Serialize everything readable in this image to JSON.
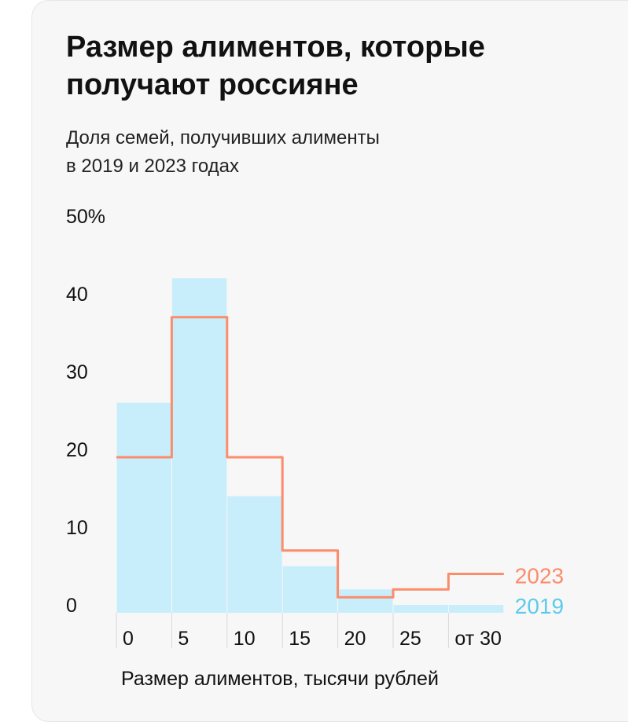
{
  "title": "Размер алиментов, которые получают россияне",
  "subtitle_lines": [
    "Доля семей, получивших алименты",
    "в 2019 и 2023 годах"
  ],
  "chart_data": {
    "type": "bar",
    "title": "Размер алиментов, которые получают россияне",
    "subtitle": "Доля семей, получивших алименты в 2019 и 2023 годах",
    "xlabel": "Размер алиментов, тысячи рублей",
    "ylabel": "",
    "categories": [
      "0",
      "5",
      "10",
      "15",
      "20",
      "25",
      "от 30"
    ],
    "ylim": [
      0,
      50
    ],
    "yticks": [
      "0",
      "10",
      "20",
      "30",
      "40",
      "50%"
    ],
    "grid": false,
    "legend": "right",
    "series": [
      {
        "name": "2019",
        "style": "bars",
        "color": "#c8eefb",
        "label_color": "#5ccbea",
        "values": [
          27,
          43,
          15,
          6,
          3,
          1,
          1
        ]
      },
      {
        "name": "2023",
        "style": "step-line",
        "color": "#fb8c6c",
        "values": [
          20,
          38,
          20,
          8,
          2,
          3,
          5
        ]
      }
    ]
  }
}
